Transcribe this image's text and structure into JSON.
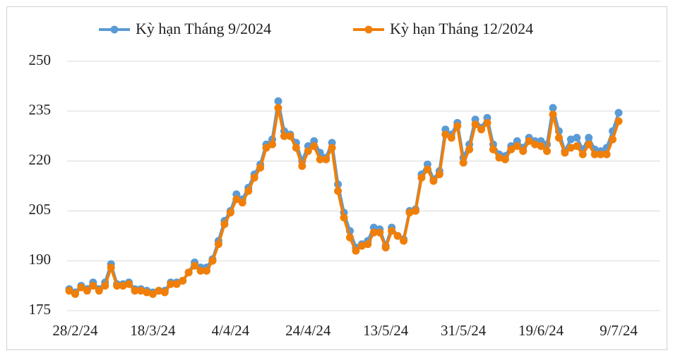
{
  "chart_data": {
    "type": "line",
    "categories": [
      null,
      "28/2/24",
      null,
      null,
      null,
      null,
      null,
      null,
      null,
      null,
      null,
      null,
      null,
      null,
      "18/3/24",
      null,
      null,
      null,
      null,
      null,
      null,
      null,
      null,
      null,
      null,
      null,
      null,
      "4/4/24",
      null,
      null,
      null,
      null,
      null,
      null,
      null,
      null,
      null,
      null,
      null,
      null,
      "24/4/24",
      null,
      null,
      null,
      null,
      null,
      null,
      null,
      null,
      null,
      null,
      null,
      null,
      "13/5/24",
      null,
      null,
      null,
      null,
      null,
      null,
      null,
      null,
      null,
      null,
      null,
      null,
      "31/5/24",
      null,
      null,
      null,
      null,
      null,
      null,
      null,
      null,
      null,
      null,
      null,
      null,
      "19/6/24",
      null,
      null,
      null,
      null,
      null,
      null,
      null,
      null,
      null,
      null,
      null,
      null,
      "9/7/24"
    ],
    "series": [
      {
        "name": "Kỳ hạn Tháng 9/2024",
        "color": "#5b9bd5",
        "values": [
          181.5,
          180.5,
          182.5,
          181.5,
          183.5,
          181.5,
          183.5,
          189,
          183,
          183,
          183.5,
          181.5,
          181.5,
          181,
          180.5,
          181,
          181,
          183.5,
          183.5,
          184,
          186.5,
          189.5,
          188,
          188,
          190.5,
          196,
          202,
          205,
          210,
          208.5,
          212,
          216,
          219,
          225,
          226.5,
          238,
          229,
          228,
          225.5,
          220,
          224.5,
          226,
          222.5,
          221,
          225.5,
          213,
          204.5,
          199,
          194,
          195,
          196,
          200,
          199.5,
          194.5,
          200,
          197.5,
          196.5,
          205,
          205.5,
          216,
          219,
          214.5,
          217,
          229.5,
          228,
          231.5,
          221,
          225,
          232.5,
          230,
          233,
          225,
          222,
          221.5,
          224.5,
          226,
          224,
          227,
          226,
          226,
          225,
          236,
          229,
          223,
          226.5,
          227,
          223.5,
          227,
          223.5,
          223,
          224,
          229,
          234.5
        ]
      },
      {
        "name": "Kỳ hạn Tháng 12/2024",
        "color": "#f07f09",
        "values": [
          181,
          180,
          182,
          181,
          182.5,
          181,
          182.5,
          188,
          182.5,
          182.5,
          183,
          181,
          181,
          180.5,
          180,
          181,
          180.5,
          183,
          183,
          184,
          186.5,
          188.5,
          187,
          187,
          190,
          195,
          201,
          204.5,
          208.5,
          207.5,
          211,
          215,
          218,
          224,
          225,
          236,
          227.5,
          227.5,
          224,
          218.5,
          223,
          224.5,
          220.5,
          220.5,
          224,
          211,
          203,
          197,
          193,
          194.5,
          195,
          198.5,
          198.5,
          194,
          199,
          197.5,
          196,
          204.5,
          205,
          215,
          217.5,
          214,
          216,
          228,
          227,
          230.5,
          219.5,
          223.5,
          231,
          229.5,
          231.5,
          223.5,
          221,
          220.5,
          223.5,
          224.5,
          223,
          226,
          225,
          224.5,
          223,
          234,
          227,
          222.5,
          224,
          224.5,
          222,
          225,
          222,
          222,
          222,
          226.5,
          232
        ]
      }
    ],
    "ylim": [
      175,
      250
    ],
    "yticks": [
      175,
      190,
      205,
      220,
      235,
      250
    ],
    "grid": true,
    "legend": "top"
  }
}
